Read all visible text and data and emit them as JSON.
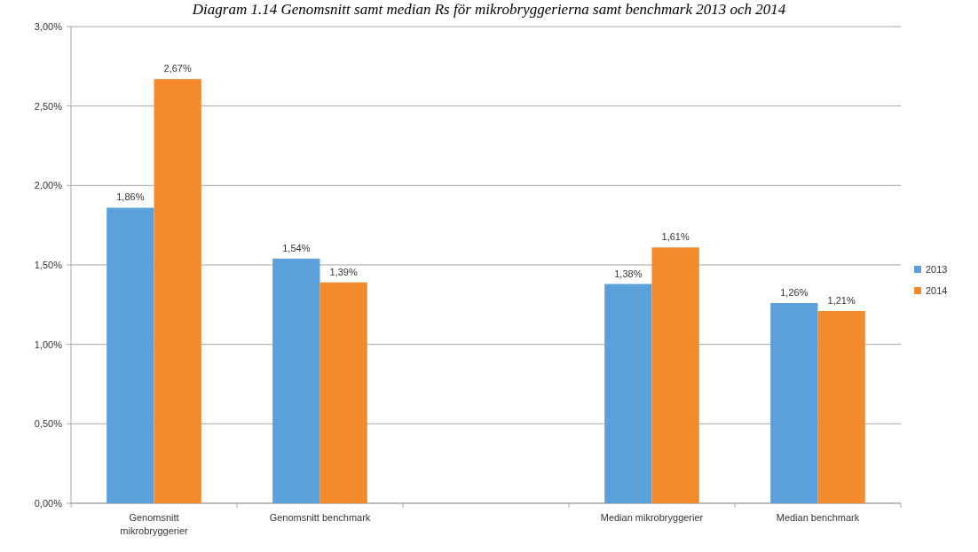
{
  "chart_data": {
    "type": "bar",
    "title": "Diagram 1.14 Genomsnitt samt median Rs för mikrobryggerierna samt benchmark 2013 och 2014",
    "categories": [
      "Genomsnitt mikrobryggerier",
      "Genomsnitt benchmark",
      null,
      "Median mikrobryggerier",
      "Median benchmark"
    ],
    "series": [
      {
        "name": "2013",
        "color": "#5b9fdb",
        "values": [
          1.86,
          1.54,
          null,
          1.38,
          1.26
        ],
        "value_labels": [
          "1,86%",
          "1,54%",
          null,
          "1,38%",
          "1,26%"
        ]
      },
      {
        "name": "2014",
        "color": "#f38a2b",
        "values": [
          2.67,
          1.39,
          null,
          1.61,
          1.21
        ],
        "value_labels": [
          "2,67%",
          "1,39%",
          null,
          "1,61%",
          "1,21%"
        ]
      }
    ],
    "ylim": [
      0,
      3
    ],
    "yticks": [
      {
        "value": 0,
        "label": "0,00%"
      },
      {
        "value": 0.5,
        "label": "0,50%"
      },
      {
        "value": 1,
        "label": "1,00%"
      },
      {
        "value": 1.5,
        "label": "1,50%"
      },
      {
        "value": 2,
        "label": "2,00%"
      },
      {
        "value": 2.5,
        "label": "2,50%"
      },
      {
        "value": 3,
        "label": "3,00%"
      }
    ],
    "grid": "y",
    "legend": "right"
  }
}
